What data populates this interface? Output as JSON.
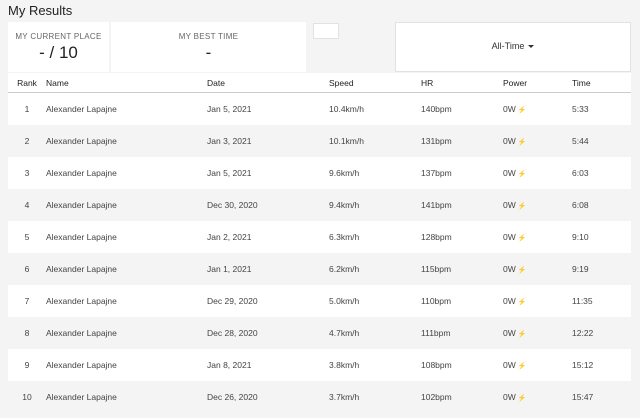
{
  "title": "My Results",
  "stats": {
    "current_place_label": "MY CURRENT PLACE",
    "current_place_value": "- / 10",
    "best_time_label": "MY BEST TIME",
    "best_time_value": "-"
  },
  "filter": {
    "selected": "All-Time"
  },
  "table": {
    "columns": [
      "Rank",
      "Name",
      "Date",
      "Speed",
      "HR",
      "Power",
      "Time"
    ],
    "rows": [
      {
        "rank": "1",
        "name": "Alexander Lapajne",
        "date": "Jan 5, 2021",
        "speed": "10.4km/h",
        "hr": "140bpm",
        "power": "0W",
        "time": "5:33"
      },
      {
        "rank": "2",
        "name": "Alexander Lapajne",
        "date": "Jan 3, 2021",
        "speed": "10.1km/h",
        "hr": "131bpm",
        "power": "0W",
        "time": "5:44"
      },
      {
        "rank": "3",
        "name": "Alexander Lapajne",
        "date": "Jan 5, 2021",
        "speed": "9.6km/h",
        "hr": "137bpm",
        "power": "0W",
        "time": "6:03"
      },
      {
        "rank": "4",
        "name": "Alexander Lapajne",
        "date": "Dec 30, 2020",
        "speed": "9.4km/h",
        "hr": "141bpm",
        "power": "0W",
        "time": "6:08"
      },
      {
        "rank": "5",
        "name": "Alexander Lapajne",
        "date": "Jan 2, 2021",
        "speed": "6.3km/h",
        "hr": "128bpm",
        "power": "0W",
        "time": "9:10"
      },
      {
        "rank": "6",
        "name": "Alexander Lapajne",
        "date": "Jan 1, 2021",
        "speed": "6.2km/h",
        "hr": "115bpm",
        "power": "0W",
        "time": "9:19"
      },
      {
        "rank": "7",
        "name": "Alexander Lapajne",
        "date": "Dec 29, 2020",
        "speed": "5.0km/h",
        "hr": "110bpm",
        "power": "0W",
        "time": "11:35"
      },
      {
        "rank": "8",
        "name": "Alexander Lapajne",
        "date": "Dec 28, 2020",
        "speed": "4.7km/h",
        "hr": "111bpm",
        "power": "0W",
        "time": "12:22"
      },
      {
        "rank": "9",
        "name": "Alexander Lapajne",
        "date": "Jan 8, 2021",
        "speed": "3.8km/h",
        "hr": "108bpm",
        "power": "0W",
        "time": "15:12"
      },
      {
        "rank": "10",
        "name": "Alexander Lapajne",
        "date": "Dec 26, 2020",
        "speed": "3.7km/h",
        "hr": "102bpm",
        "power": "0W",
        "time": "15:47"
      }
    ]
  },
  "icons": {
    "power": "lightning-bolt-icon",
    "filter": "chevron-down-icon"
  },
  "colors": {
    "date_link": "#5a7fc1",
    "row_alt": "#f4f4f4",
    "card": "#ffffff"
  }
}
